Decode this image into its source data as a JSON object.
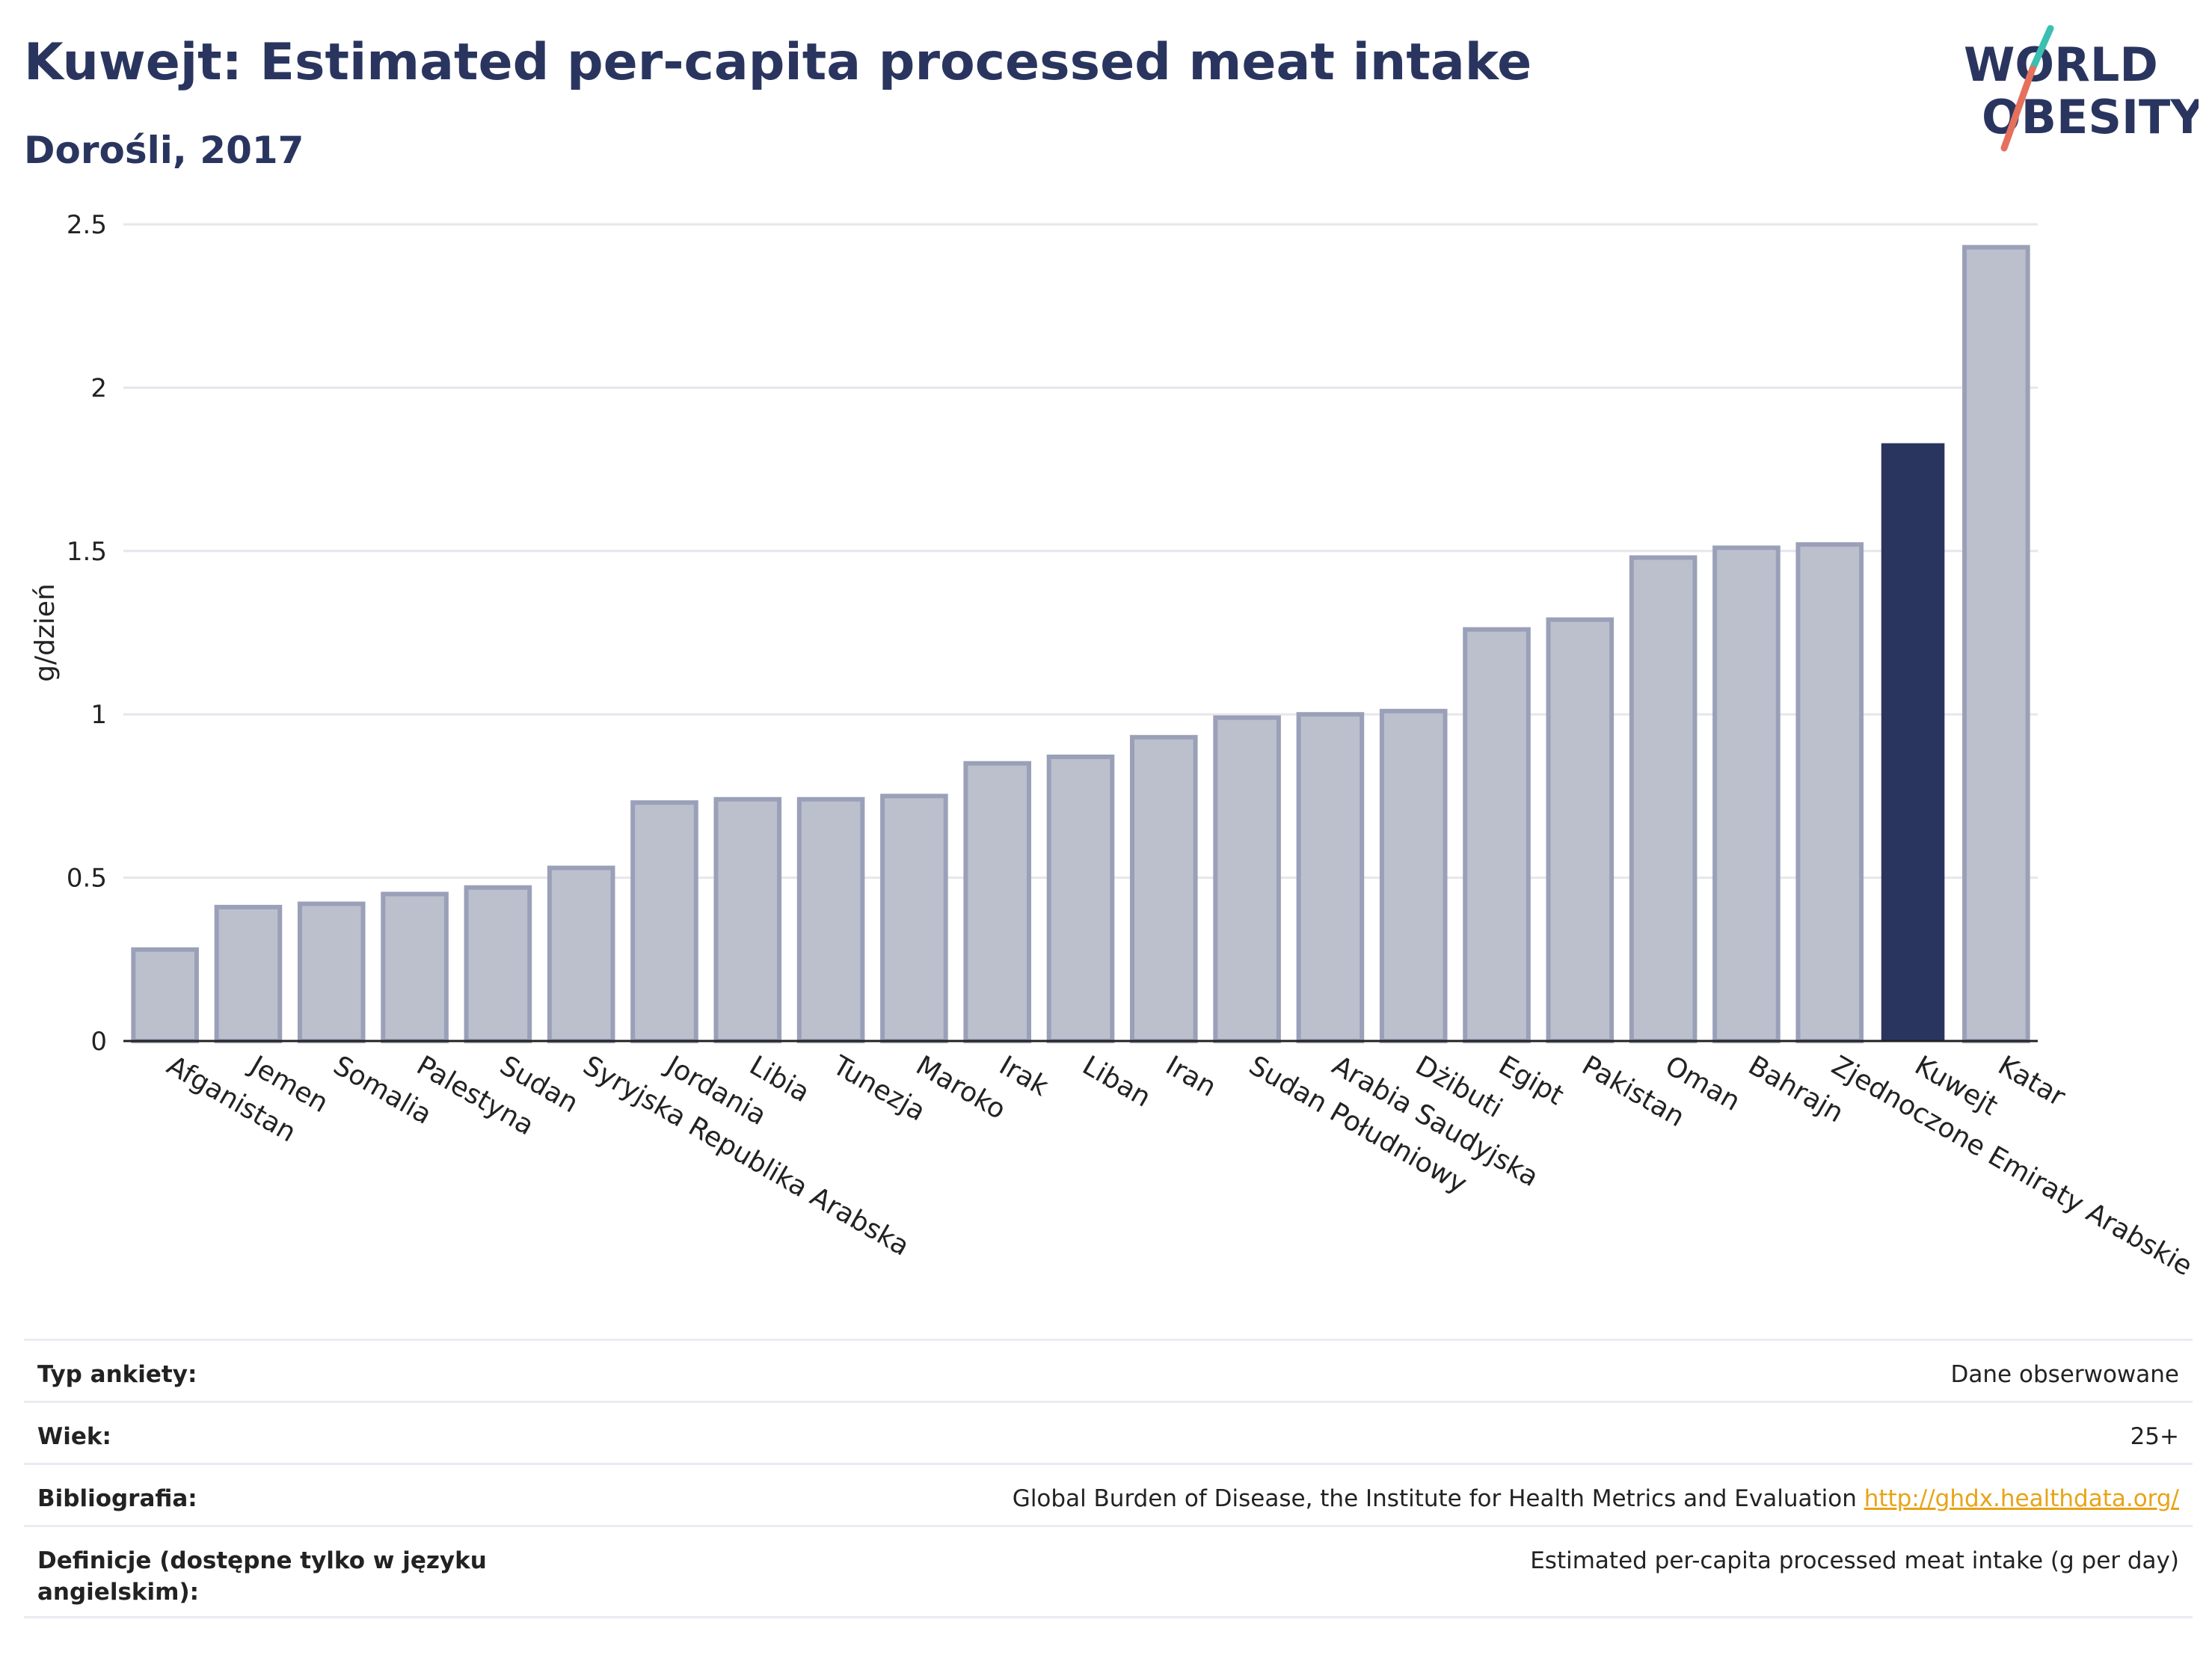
{
  "header": {
    "title": "Kuwejt: Estimated per-capita processed meat intake",
    "subtitle": "Dorośli, 2017"
  },
  "logo": {
    "line1": "WORLD",
    "line2": "OBESITY"
  },
  "colors": {
    "highlight_bar": "#2a355f",
    "other_bar_fill": "#bcc0cd",
    "other_bar_stroke": "#9aa0b8",
    "title": "#2a355f",
    "link": "#e8a317",
    "logo_teal": "#3bbfb0",
    "logo_coral": "#e5705c"
  },
  "chart_data": {
    "type": "bar",
    "ylabel": "g/dzień",
    "xlabel": "",
    "ylim": [
      0,
      2.5
    ],
    "yticks": [
      0,
      0.5,
      1,
      1.5,
      2,
      2.5
    ],
    "ytick_labels": [
      "0",
      "0.5",
      "1",
      "1.5",
      "2",
      "2.5"
    ],
    "grid": true,
    "highlight": "Kuwejt",
    "categories": [
      "Afganistan",
      "Jemen",
      "Somalia",
      "Palestyna",
      "Sudan",
      "Syryjska Republika Arabska",
      "Jordania",
      "Libia",
      "Tunezja",
      "Maroko",
      "Irak",
      "Liban",
      "Iran",
      "Sudan Południowy",
      "Arabia Saudyjska",
      "Dżibuti",
      "Egipt",
      "Pakistan",
      "Oman",
      "Bahrajn",
      "Zjednoczone Emiraty Arabskie",
      "Kuwejt",
      "Katar"
    ],
    "values": [
      0.28,
      0.41,
      0.42,
      0.45,
      0.47,
      0.53,
      0.73,
      0.74,
      0.74,
      0.75,
      0.85,
      0.87,
      0.93,
      0.99,
      1.0,
      1.01,
      1.26,
      1.29,
      1.48,
      1.51,
      1.52,
      1.83,
      2.43
    ]
  },
  "info": {
    "rows": [
      {
        "label": "Typ ankiety:",
        "value": "Dane obserwowane"
      },
      {
        "label": "Wiek:",
        "value": "25+"
      },
      {
        "label": "Bibliografia:",
        "value": "Global Burden of Disease, the Institute for Health Metrics and Evaluation",
        "link": "http://ghdx.healthdata.org/"
      },
      {
        "label": "Definicje (dostępne tylko w języku angielskim):",
        "value": "Estimated per-capita processed meat intake (g per day)"
      }
    ]
  }
}
